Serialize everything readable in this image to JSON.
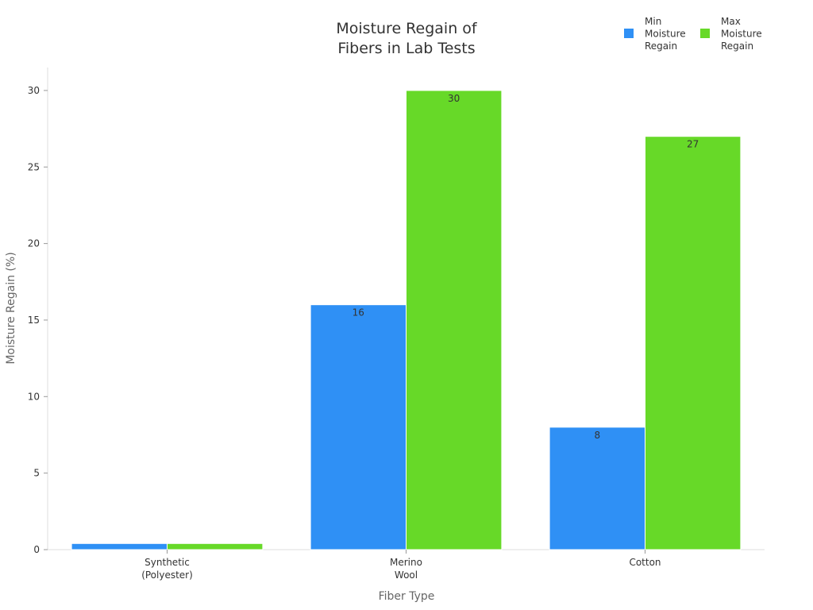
{
  "chart_data": {
    "type": "bar",
    "title": "Moisture Regain of Fibers in Lab Tests",
    "title_lines": [
      "Moisture Regain of",
      "Fibers in Lab Tests"
    ],
    "xlabel": "Fiber Type",
    "ylabel": "Moisture Regain (%)",
    "categories": [
      "Synthetic (Polyester)",
      "Merino Wool",
      "Cotton"
    ],
    "category_lines": [
      [
        "Synthetic",
        "(Polyester)"
      ],
      [
        "Merino",
        "Wool"
      ],
      [
        "Cotton"
      ]
    ],
    "series": [
      {
        "name": "Min Moisture Regain",
        "name_lines": [
          "Min",
          "Moisture",
          "Regain"
        ],
        "values": [
          0.4,
          16,
          8
        ],
        "color": "#2f90f5"
      },
      {
        "name": "Max Moisture Regain",
        "name_lines": [
          "Max",
          "Moisture",
          "Regain"
        ],
        "values": [
          0.4,
          30,
          27
        ],
        "color": "#67d928"
      }
    ],
    "data_labels": [
      [
        "",
        "16",
        "8"
      ],
      [
        "",
        "30",
        "27"
      ]
    ],
    "ylim": [
      0,
      31.5
    ],
    "yticks": [
      0,
      5,
      10,
      15,
      20,
      25,
      30
    ],
    "grid": false,
    "legend_position": "top-right"
  }
}
